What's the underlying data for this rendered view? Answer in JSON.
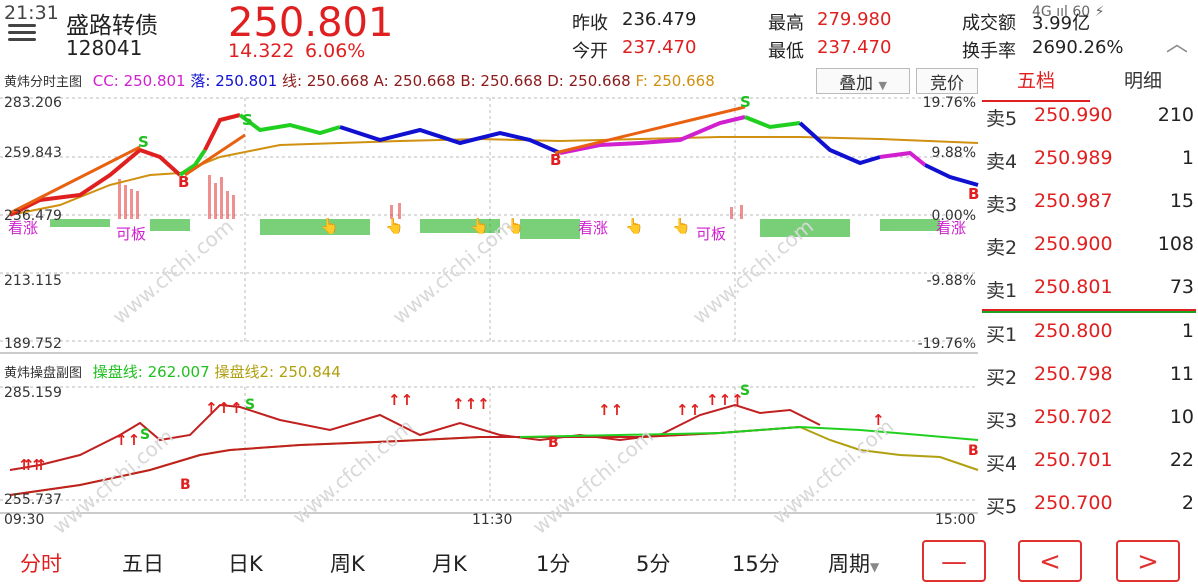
{
  "status_bar": {
    "time": "21:31",
    "right": "4G ııl 60 ⚡"
  },
  "header": {
    "name": "盛路转债",
    "code": "128041",
    "price": "250.801",
    "change": "14.322",
    "change_pct": "6.06%",
    "stats": [
      {
        "label": "昨收",
        "value": "236.479",
        "color": "#222222"
      },
      {
        "label": "今开",
        "value": "237.470",
        "color": "#e02020"
      },
      {
        "label": "最高",
        "value": "279.980",
        "color": "#e02020"
      },
      {
        "label": "最低",
        "value": "237.470",
        "color": "#e02020"
      },
      {
        "label": "成交额",
        "value": "3.99亿",
        "color": "#222222"
      },
      {
        "label": "换手率",
        "value": "2690.26%",
        "color": "#222222"
      }
    ]
  },
  "main_chart": {
    "title": "黄炜分时主图",
    "legend": [
      {
        "text": "CC: 250.801",
        "color": "#d020d0"
      },
      {
        "text": "落: 250.801",
        "color": "#1010d0"
      },
      {
        "text": "线: 250.668",
        "color": "#8b1a1a"
      },
      {
        "text": "A: 250.668",
        "color": "#8b1a1a"
      },
      {
        "text": "B: 250.668",
        "color": "#8b1a1a"
      },
      {
        "text": "D: 250.668",
        "color": "#8b1a1a"
      },
      {
        "text": "F: 250.668",
        "color": "#d09010"
      }
    ],
    "overlay_button": "叠加",
    "auction_button": "竞价",
    "y_left": [
      "283.206",
      "259.843",
      "236.479",
      "213.115",
      "189.752"
    ],
    "y_right": [
      "19.76%",
      "9.88%",
      "0.00%",
      "-9.88%",
      "-19.76%"
    ],
    "markers": [
      "看涨",
      "可板",
      "看涨",
      "可板",
      "看涨"
    ],
    "signal_labels": {
      "buy": "B",
      "sell": "S"
    }
  },
  "sub_chart": {
    "title": "黄炜操盘副图",
    "legend": [
      {
        "text": "操盘线: 262.007",
        "color": "#20c020"
      },
      {
        "text": "操盘线2: 250.844",
        "color": "#b0a010"
      }
    ],
    "y_top": "285.159",
    "y_bottom": "255.737"
  },
  "time_axis": [
    "09:30",
    "11:30",
    "15:00"
  ],
  "order_book": {
    "tabs": [
      "五档",
      "明细"
    ],
    "active_tab": 0,
    "asks": [
      {
        "label": "卖5",
        "price": "250.990",
        "volume": "210"
      },
      {
        "label": "卖4",
        "price": "250.989",
        "volume": "1"
      },
      {
        "label": "卖3",
        "price": "250.987",
        "volume": "15"
      },
      {
        "label": "卖2",
        "price": "250.900",
        "volume": "108"
      },
      {
        "label": "卖1",
        "price": "250.801",
        "volume": "73"
      }
    ],
    "bids": [
      {
        "label": "买1",
        "price": "250.800",
        "volume": "1"
      },
      {
        "label": "买2",
        "price": "250.798",
        "volume": "11"
      },
      {
        "label": "买3",
        "price": "250.702",
        "volume": "10"
      },
      {
        "label": "买4",
        "price": "250.701",
        "volume": "22"
      },
      {
        "label": "买5",
        "price": "250.700",
        "volume": "2"
      }
    ]
  },
  "bottom_tabs": [
    "分时",
    "五日",
    "日K",
    "周K",
    "月K",
    "1分",
    "5分",
    "15分",
    "周期"
  ],
  "active_bottom_tab": 0,
  "nav_buttons": [
    "—",
    "<",
    ">"
  ],
  "watermark": "www.cfchi.com",
  "colors": {
    "up": "#e02020",
    "accent": "#e03030",
    "avg_line": "#d09010"
  }
}
